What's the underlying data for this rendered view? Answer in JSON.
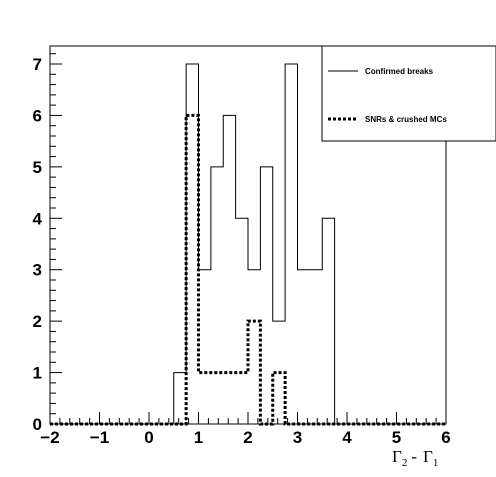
{
  "chart_data": {
    "type": "histogram-step",
    "title": "",
    "xlabel": "Γ₂ - Γ₁",
    "xlabel_parts": {
      "g": "Γ",
      "s1": "2",
      "sep": "-",
      "s2": "1"
    },
    "ylabel": "",
    "xlim": [
      -2,
      6
    ],
    "ylim": [
      0,
      7.35
    ],
    "bin_width": 0.25,
    "x_edges": [
      -2.0,
      -1.75,
      -1.5,
      -1.25,
      -1.0,
      -0.75,
      -0.5,
      -0.25,
      0.0,
      0.25,
      0.5,
      0.75,
      1.0,
      1.25,
      1.5,
      1.75,
      2.0,
      2.25,
      2.5,
      2.75,
      3.0,
      3.25,
      3.5,
      3.75,
      4.0,
      4.25,
      4.5,
      4.75,
      5.0,
      5.25,
      5.5,
      5.75,
      6.0
    ],
    "x_ticks": [
      -2,
      -1,
      0,
      1,
      2,
      3,
      4,
      5,
      6
    ],
    "x_tick_labels": [
      "−2",
      "−1",
      "0",
      "1",
      "2",
      "3",
      "4",
      "5",
      "6"
    ],
    "y_ticks": [
      0,
      1,
      2,
      3,
      4,
      5,
      6,
      7
    ],
    "y_tick_labels": [
      "0",
      "1",
      "2",
      "3",
      "4",
      "5",
      "6",
      "7"
    ],
    "series": [
      {
        "name": "Confirmed breaks",
        "style": "solid",
        "color": "#000000",
        "values": [
          0,
          0,
          0,
          0,
          0,
          0,
          0,
          0,
          0,
          0,
          1,
          7,
          3,
          5,
          6,
          4,
          3,
          5,
          2,
          7,
          3,
          3,
          4,
          0,
          0,
          0,
          0,
          0,
          0,
          0,
          0,
          0
        ]
      },
      {
        "name": "SNRs & crushed MCs",
        "style": "dotted",
        "color": "#000000",
        "values": [
          0,
          0,
          0,
          0,
          0,
          0,
          0,
          0,
          0,
          0,
          0,
          6,
          1,
          1,
          1,
          1,
          2,
          0,
          1,
          0,
          0,
          0,
          0,
          0,
          0,
          0,
          0,
          0,
          0,
          0,
          0,
          0
        ]
      }
    ],
    "legend_position": "top-right",
    "grid": false
  }
}
